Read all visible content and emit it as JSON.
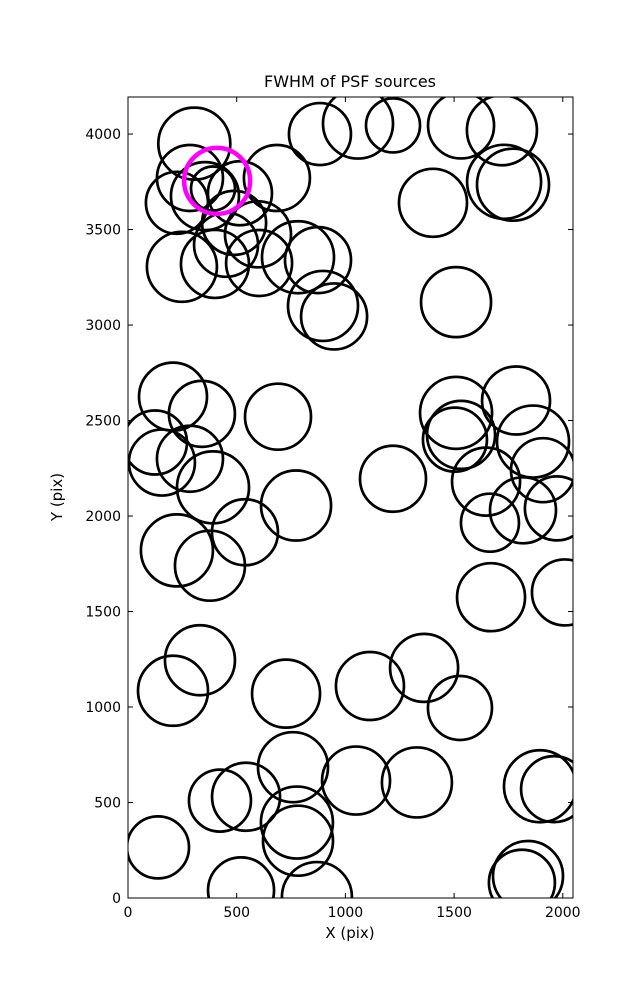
{
  "title": "FWHM of PSF sources",
  "chart_data": {
    "type": "scatter",
    "title": "FWHM of PSF sources",
    "xlabel": "X (pix)",
    "ylabel": "Y (pix)",
    "xlim": [
      0,
      2047
    ],
    "ylim": [
      0,
      4194
    ],
    "xticks": [
      0,
      500,
      1000,
      1500,
      2000
    ],
    "yticks": [
      0,
      500,
      1000,
      1500,
      2000,
      2500,
      3000,
      3500,
      4000
    ],
    "grid": false,
    "legend": "none",
    "marker": "open-circle",
    "marker_color": "#000000",
    "marker_linewidth": 2.7,
    "highlight_color": "#ff00ff",
    "highlight_linewidth": 4.5,
    "radius_units": "screen-px",
    "points": [
      {
        "x": 305,
        "y": 3950,
        "r": 36
      },
      {
        "x": 285,
        "y": 3770,
        "r": 33
      },
      {
        "x": 225,
        "y": 3640,
        "r": 31
      },
      {
        "x": 391,
        "y": 3715,
        "r": 22
      },
      {
        "x": 515,
        "y": 3690,
        "r": 32
      },
      {
        "x": 685,
        "y": 3770,
        "r": 33
      },
      {
        "x": 354,
        "y": 3675,
        "r": 34
      },
      {
        "x": 488,
        "y": 3535,
        "r": 32
      },
      {
        "x": 248,
        "y": 3305,
        "r": 35
      },
      {
        "x": 400,
        "y": 3320,
        "r": 34
      },
      {
        "x": 603,
        "y": 3325,
        "r": 33
      },
      {
        "x": 451,
        "y": 3420,
        "r": 32
      },
      {
        "x": 598,
        "y": 3475,
        "r": 33
      },
      {
        "x": 782,
        "y": 3355,
        "r": 36
      },
      {
        "x": 874,
        "y": 3340,
        "r": 33
      },
      {
        "x": 883,
        "y": 4000,
        "r": 31
      },
      {
        "x": 1058,
        "y": 4055,
        "r": 35
      },
      {
        "x": 1219,
        "y": 4045,
        "r": 27
      },
      {
        "x": 1532,
        "y": 4045,
        "r": 33
      },
      {
        "x": 1720,
        "y": 4020,
        "r": 35
      },
      {
        "x": 1730,
        "y": 3750,
        "r": 37
      },
      {
        "x": 1771,
        "y": 3735,
        "r": 36
      },
      {
        "x": 1403,
        "y": 3640,
        "r": 34
      },
      {
        "x": 897,
        "y": 3100,
        "r": 35
      },
      {
        "x": 948,
        "y": 3045,
        "r": 33
      },
      {
        "x": 1509,
        "y": 3120,
        "r": 35
      },
      {
        "x": 207,
        "y": 2625,
        "r": 34
      },
      {
        "x": 340,
        "y": 2535,
        "r": 33
      },
      {
        "x": 124,
        "y": 2385,
        "r": 32
      },
      {
        "x": 156,
        "y": 2280,
        "r": 33
      },
      {
        "x": 285,
        "y": 2300,
        "r": 33
      },
      {
        "x": 391,
        "y": 2150,
        "r": 36
      },
      {
        "x": 690,
        "y": 2520,
        "r": 33
      },
      {
        "x": 773,
        "y": 2055,
        "r": 35
      },
      {
        "x": 538,
        "y": 1915,
        "r": 33
      },
      {
        "x": 225,
        "y": 1820,
        "r": 36
      },
      {
        "x": 377,
        "y": 1740,
        "r": 35
      },
      {
        "x": 1219,
        "y": 2195,
        "r": 33
      },
      {
        "x": 1785,
        "y": 2605,
        "r": 34
      },
      {
        "x": 1509,
        "y": 2540,
        "r": 36
      },
      {
        "x": 1532,
        "y": 2425,
        "r": 34
      },
      {
        "x": 1504,
        "y": 2400,
        "r": 32
      },
      {
        "x": 1863,
        "y": 2390,
        "r": 36
      },
      {
        "x": 1909,
        "y": 2240,
        "r": 32
      },
      {
        "x": 1647,
        "y": 2180,
        "r": 34
      },
      {
        "x": 1665,
        "y": 1965,
        "r": 29
      },
      {
        "x": 1817,
        "y": 2030,
        "r": 33
      },
      {
        "x": 1973,
        "y": 2040,
        "r": 32
      },
      {
        "x": 1670,
        "y": 1575,
        "r": 34
      },
      {
        "x": 2010,
        "y": 1600,
        "r": 33
      },
      {
        "x": 331,
        "y": 1245,
        "r": 35
      },
      {
        "x": 207,
        "y": 1085,
        "r": 35
      },
      {
        "x": 727,
        "y": 1070,
        "r": 34
      },
      {
        "x": 1362,
        "y": 1205,
        "r": 34
      },
      {
        "x": 1113,
        "y": 1110,
        "r": 34
      },
      {
        "x": 1527,
        "y": 995,
        "r": 32
      },
      {
        "x": 423,
        "y": 510,
        "r": 31
      },
      {
        "x": 543,
        "y": 530,
        "r": 34
      },
      {
        "x": 759,
        "y": 685,
        "r": 35
      },
      {
        "x": 1049,
        "y": 615,
        "r": 34
      },
      {
        "x": 1329,
        "y": 605,
        "r": 35
      },
      {
        "x": 777,
        "y": 395,
        "r": 36
      },
      {
        "x": 782,
        "y": 300,
        "r": 35
      },
      {
        "x": 138,
        "y": 265,
        "r": 31
      },
      {
        "x": 520,
        "y": 40,
        "r": 33
      },
      {
        "x": 869,
        "y": 5,
        "r": 35
      },
      {
        "x": 1895,
        "y": 585,
        "r": 36
      },
      {
        "x": 1960,
        "y": 570,
        "r": 33
      },
      {
        "x": 1840,
        "y": 115,
        "r": 35
      },
      {
        "x": 1812,
        "y": 80,
        "r": 33
      }
    ],
    "highlight": {
      "x": 410,
      "y": 3755,
      "r": 33
    }
  }
}
